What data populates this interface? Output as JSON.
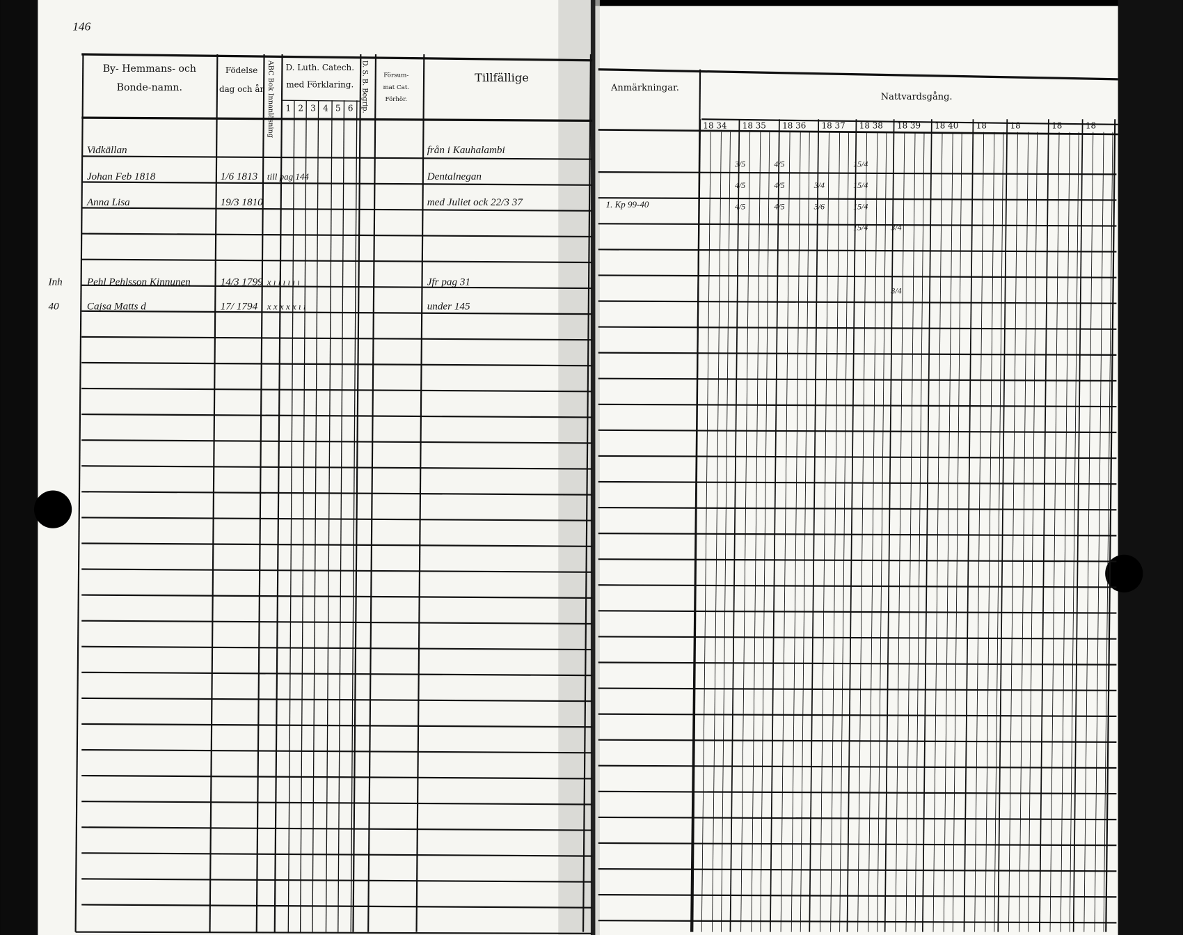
{
  "page_number": "146",
  "left_page": {
    "headers": {
      "name": [
        "By- Hemmans- och",
        "Bonde-namn."
      ],
      "birth": [
        "Födelse",
        "dag och år"
      ],
      "abc": "ABC Bok Innanläsning",
      "catechism": [
        "D. Luth. Catech.",
        "med Förklaring."
      ],
      "catechism_cols": [
        "1",
        "2",
        "3",
        "4",
        "5",
        "6"
      ],
      "dsb": "D. S. B. Begrip.",
      "missed": [
        "Försum-",
        "mat Cat.",
        "Förhör."
      ],
      "tillfallige": "Tillfällige"
    },
    "entries": [
      {
        "prefix": "",
        "name": "Vidkällan",
        "birth": "",
        "marks": "",
        "tillfallige": "från i Kauhalambi"
      },
      {
        "prefix": "",
        "name": "Johan  Feb 1818",
        "birth": "1/6 1813",
        "marks": "till pag 144",
        "tillfallige": "Dentalnegan"
      },
      {
        "prefix": "",
        "name": "Anna Lisa",
        "birth": "19/3 1810",
        "marks": "",
        "tillfallige": "med Juliet ock 22/3 37"
      },
      {
        "prefix": "Inh",
        "name": "Pehl Pehlsson Kinnunen",
        "birth": "14/3 1799",
        "marks": "x  ı  ı  ı  ı  ı  ı",
        "tillfallige": "Jfr pag 31"
      },
      {
        "prefix": "40",
        "name": "Cajsa Matts d",
        "birth": "17/ 1794",
        "marks": "x  x  x  x  x  ı  ı",
        "tillfallige": "under 145"
      }
    ]
  },
  "right_page": {
    "headers": {
      "remarks": "Anmärkningar.",
      "communion": "Nattvardsgång."
    },
    "years": [
      "18 34",
      "18 35",
      "18 36",
      "18 37",
      "18 38",
      "18 39",
      "18 40",
      "18",
      "18",
      "18",
      "18"
    ],
    "remarks_entries": [
      "1. Kp 99-40"
    ],
    "communion_marks": [
      {
        "row": 1,
        "col": 1,
        "text": "3/5"
      },
      {
        "row": 1,
        "col": 2,
        "text": "4/5"
      },
      {
        "row": 1,
        "col": 4,
        "text": "15/4"
      },
      {
        "row": 2,
        "col": 1,
        "text": "4/5"
      },
      {
        "row": 2,
        "col": 2,
        "text": "4/5"
      },
      {
        "row": 2,
        "col": 3,
        "text": "3/4"
      },
      {
        "row": 2,
        "col": 4,
        "text": "15/4"
      },
      {
        "row": 3,
        "col": 1,
        "text": "4/5"
      },
      {
        "row": 3,
        "col": 2,
        "text": "4/5"
      },
      {
        "row": 3,
        "col": 3,
        "text": "3/6"
      },
      {
        "row": 3,
        "col": 4,
        "text": "15/4"
      },
      {
        "row": 4,
        "col": 4,
        "text": "15/4"
      },
      {
        "row": 4,
        "col": 5,
        "text": "3/4"
      },
      {
        "row": 7,
        "col": 5,
        "text": "3/4"
      }
    ]
  }
}
